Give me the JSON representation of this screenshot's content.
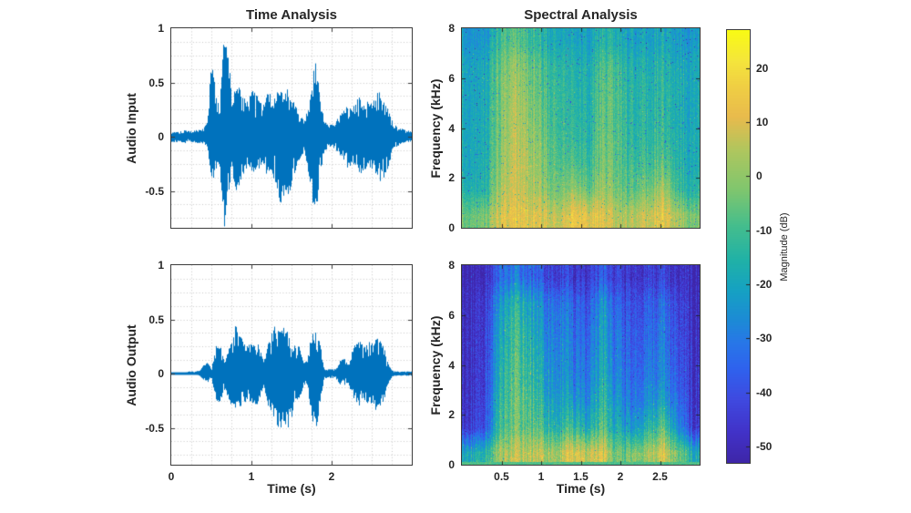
{
  "figure": {
    "background": "#ffffff",
    "text_color": "#262626",
    "axis_color": "#3c3c3c",
    "grid_color": "#c9c9c9"
  },
  "chart_data": [
    {
      "id": "audio-input-waveform",
      "type": "line",
      "title": "Time Analysis",
      "ylabel": "Audio Input",
      "xlabel": "",
      "xlim": [
        0,
        3
      ],
      "ylim": [
        -0.84,
        1
      ],
      "yticks": [
        {
          "v": 1,
          "label": "1"
        },
        {
          "v": 0.5,
          "label": "0.5"
        },
        {
          "v": 0,
          "label": "0"
        },
        {
          "v": -0.5,
          "label": "-0.5"
        }
      ],
      "xticks": [
        {
          "v": 0,
          "label": "0"
        },
        {
          "v": 1,
          "label": "1"
        },
        {
          "v": 2,
          "label": "2"
        }
      ],
      "show_xtick_labels": false,
      "grid": {
        "style": "dotted",
        "minor_x_step_s": 0.25,
        "minor_y_step": 0.125
      },
      "line_color": "#0072bd",
      "sample_step_s": 0.05,
      "envelope_pos": [
        0.04,
        0.05,
        0.05,
        0.06,
        0.06,
        0.05,
        0.06,
        0.07,
        0.08,
        0.15,
        0.8,
        0.4,
        0.3,
        1.0,
        0.9,
        0.35,
        0.45,
        0.5,
        0.4,
        0.35,
        0.45,
        0.4,
        0.35,
        0.3,
        0.45,
        0.35,
        0.4,
        0.45,
        0.4,
        0.45,
        0.35,
        0.3,
        0.2,
        0.15,
        0.25,
        0.5,
        0.75,
        0.45,
        0.15,
        0.12,
        0.12,
        0.15,
        0.2,
        0.25,
        0.3,
        0.25,
        0.35,
        0.4,
        0.3,
        0.35,
        0.3,
        0.4,
        0.45,
        0.35,
        0.25,
        0.15,
        0.1,
        0.08,
        0.07,
        0.06
      ],
      "envelope_neg": [
        0.05,
        0.05,
        0.05,
        0.06,
        0.06,
        0.05,
        0.06,
        0.06,
        0.07,
        0.1,
        0.45,
        0.3,
        0.25,
        0.95,
        0.6,
        0.3,
        0.5,
        0.45,
        0.35,
        0.3,
        0.35,
        0.3,
        0.3,
        0.25,
        0.4,
        0.35,
        0.5,
        0.65,
        0.6,
        0.65,
        0.45,
        0.3,
        0.2,
        0.15,
        0.3,
        0.6,
        0.78,
        0.4,
        0.15,
        0.1,
        0.1,
        0.12,
        0.2,
        0.25,
        0.3,
        0.25,
        0.3,
        0.35,
        0.3,
        0.3,
        0.3,
        0.35,
        0.45,
        0.4,
        0.3,
        0.15,
        0.1,
        0.07,
        0.06,
        0.05
      ]
    },
    {
      "id": "audio-output-waveform",
      "type": "line",
      "title": "",
      "ylabel": "Audio Output",
      "xlabel": "Time (s)",
      "xlim": [
        0,
        3
      ],
      "ylim": [
        -0.84,
        1
      ],
      "yticks": [
        {
          "v": 1,
          "label": "1"
        },
        {
          "v": 0.5,
          "label": "0.5"
        },
        {
          "v": 0,
          "label": "0"
        },
        {
          "v": -0.5,
          "label": "-0.5"
        }
      ],
      "xticks": [
        {
          "v": 0,
          "label": "0"
        },
        {
          "v": 1,
          "label": "1"
        },
        {
          "v": 2,
          "label": "2"
        }
      ],
      "show_xtick_labels": true,
      "grid": {
        "style": "dotted",
        "minor_x_step_s": 0.25,
        "minor_y_step": 0.125
      },
      "line_color": "#0072bd",
      "sample_step_s": 0.05,
      "envelope_pos": [
        0.01,
        0.01,
        0.01,
        0.01,
        0.02,
        0.02,
        0.02,
        0.03,
        0.08,
        0.1,
        0.05,
        0.28,
        0.3,
        0.15,
        0.2,
        0.3,
        0.45,
        0.35,
        0.3,
        0.25,
        0.3,
        0.32,
        0.25,
        0.1,
        0.3,
        0.4,
        0.45,
        0.4,
        0.45,
        0.4,
        0.3,
        0.25,
        0.25,
        0.1,
        0.15,
        0.42,
        0.42,
        0.3,
        0.05,
        0.04,
        0.04,
        0.05,
        0.12,
        0.15,
        0.08,
        0.2,
        0.3,
        0.3,
        0.25,
        0.3,
        0.28,
        0.35,
        0.32,
        0.25,
        0.1,
        0.03,
        0.02,
        0.02,
        0.02,
        0.02
      ],
      "envelope_neg": [
        0.01,
        0.01,
        0.01,
        0.01,
        0.01,
        0.01,
        0.01,
        0.02,
        0.06,
        0.08,
        0.05,
        0.25,
        0.3,
        0.15,
        0.25,
        0.3,
        0.32,
        0.3,
        0.3,
        0.25,
        0.28,
        0.3,
        0.25,
        0.1,
        0.3,
        0.35,
        0.45,
        0.55,
        0.5,
        0.55,
        0.4,
        0.25,
        0.25,
        0.1,
        0.15,
        0.45,
        0.53,
        0.3,
        0.05,
        0.04,
        0.04,
        0.05,
        0.1,
        0.12,
        0.08,
        0.2,
        0.3,
        0.3,
        0.25,
        0.28,
        0.28,
        0.35,
        0.3,
        0.25,
        0.1,
        0.03,
        0.02,
        0.02,
        0.02,
        0.02
      ]
    },
    {
      "id": "input-spectrogram",
      "type": "heatmap",
      "title": "Spectral Analysis",
      "ylabel": "Frequency (kHz)",
      "xlabel": "",
      "xlim": [
        0,
        3
      ],
      "ylim": [
        0,
        8
      ],
      "yticks": [
        {
          "v": 8,
          "label": "8"
        },
        {
          "v": 6,
          "label": "6"
        },
        {
          "v": 4,
          "label": "4"
        },
        {
          "v": 2,
          "label": "2"
        },
        {
          "v": 0,
          "label": "0"
        }
      ],
      "xticks": [
        {
          "v": 0.5,
          "label": "0.5"
        },
        {
          "v": 1,
          "label": "1"
        },
        {
          "v": 1.5,
          "label": "1.5"
        },
        {
          "v": 2,
          "label": "2"
        },
        {
          "v": 2.5,
          "label": "2.5"
        }
      ],
      "show_xtick_labels": false,
      "time_bin_centers_s": [
        0.09,
        0.28,
        0.47,
        0.66,
        0.84,
        1.03,
        1.22,
        1.41,
        1.59,
        1.78,
        1.97,
        2.16,
        2.34,
        2.53,
        2.72,
        2.91
      ],
      "freq_row_centers_khz": [
        7.5,
        6.5,
        5.5,
        4.5,
        3.5,
        2.5,
        1.5,
        0.5
      ],
      "values_db": [
        [
          -24,
          -24,
          -12,
          -8,
          -11,
          -16,
          -18,
          -21,
          -21,
          -15,
          -19,
          -21,
          -21,
          -18,
          -21,
          -24
        ],
        [
          -20,
          -19,
          -6,
          0,
          -4,
          -11,
          -13,
          -17,
          -17,
          -8,
          -13,
          -17,
          -17,
          -14,
          -17,
          -20
        ],
        [
          -20,
          -19,
          -5,
          2,
          -2,
          -9,
          -11,
          -16,
          -16,
          -6,
          -11,
          -15,
          -16,
          -13,
          -16,
          -20
        ],
        [
          -20,
          -18,
          -4,
          4,
          0,
          -7,
          -11,
          -15,
          -15,
          -5,
          -11,
          -15,
          -15,
          -12,
          -16,
          -20
        ],
        [
          -19,
          -18,
          -3,
          5,
          2,
          -5,
          -9,
          -13,
          -14,
          -4,
          -10,
          -14,
          -14,
          -10,
          -15,
          -19
        ],
        [
          -19,
          -17,
          -1,
          6,
          4,
          -3,
          -7,
          -9,
          -11,
          -2,
          -9,
          -11,
          -11,
          -6,
          -13,
          -19
        ],
        [
          -16,
          -15,
          2,
          7,
          5,
          0,
          -3,
          0,
          -5,
          2,
          -6,
          -7,
          -4,
          4,
          -9,
          -16
        ],
        [
          -5,
          -3,
          9,
          11,
          11,
          9,
          7,
          13,
          11,
          11,
          2,
          5,
          7,
          13,
          5,
          -4
        ]
      ],
      "noise_db": 9,
      "col_var_db": 5,
      "speckle_dark_p": 0.012,
      "speckle_bright_p": 0.004,
      "bottom_band_db": null
    },
    {
      "id": "output-spectrogram",
      "type": "heatmap",
      "title": "",
      "ylabel": "Frequency (kHz)",
      "xlabel": "Time (s)",
      "xlim": [
        0,
        3
      ],
      "ylim": [
        0,
        8
      ],
      "yticks": [
        {
          "v": 8,
          "label": "8"
        },
        {
          "v": 6,
          "label": "6"
        },
        {
          "v": 4,
          "label": "4"
        },
        {
          "v": 2,
          "label": "2"
        },
        {
          "v": 0,
          "label": "0"
        }
      ],
      "xticks": [
        {
          "v": 0.5,
          "label": "0.5"
        },
        {
          "v": 1,
          "label": "1"
        },
        {
          "v": 1.5,
          "label": "1.5"
        },
        {
          "v": 2,
          "label": "2"
        },
        {
          "v": 2.5,
          "label": "2.5"
        }
      ],
      "show_xtick_labels": true,
      "time_bin_centers_s": [
        0.09,
        0.28,
        0.47,
        0.66,
        0.84,
        1.03,
        1.22,
        1.41,
        1.59,
        1.78,
        1.97,
        2.16,
        2.34,
        2.53,
        2.72,
        2.91
      ],
      "freq_row_centers_khz": [
        7.5,
        6.5,
        5.5,
        4.5,
        3.5,
        2.5,
        1.5,
        0.5
      ],
      "values_db": [
        [
          -51,
          -51,
          -36,
          -30,
          -33,
          -40,
          -43,
          -46,
          -46,
          -38,
          -46,
          -49,
          -46,
          -42,
          -49,
          -51
        ],
        [
          -49,
          -47,
          -26,
          -15,
          -19,
          -29,
          -31,
          -36,
          -39,
          -25,
          -39,
          -43,
          -39,
          -33,
          -43,
          -49
        ],
        [
          -49,
          -46,
          -23,
          -11,
          -16,
          -26,
          -29,
          -33,
          -36,
          -22,
          -36,
          -41,
          -36,
          -30,
          -41,
          -49
        ],
        [
          -48,
          -46,
          -21,
          -9,
          -13,
          -23,
          -27,
          -31,
          -34,
          -20,
          -34,
          -39,
          -34,
          -28,
          -39,
          -48
        ],
        [
          -48,
          -45,
          -19,
          -7,
          -11,
          -21,
          -25,
          -29,
          -31,
          -18,
          -31,
          -37,
          -31,
          -26,
          -37,
          -48
        ],
        [
          -47,
          -43,
          -16,
          -5,
          -7,
          -17,
          -21,
          -23,
          -27,
          -14,
          -27,
          -33,
          -27,
          -19,
          -33,
          -47
        ],
        [
          -45,
          -41,
          -13,
          -5,
          -5,
          -11,
          -15,
          -11,
          -19,
          -8,
          -21,
          -26,
          -17,
          -6,
          -26,
          -45
        ],
        [
          -18,
          -16,
          0,
          6,
          7,
          5,
          3,
          11,
          6,
          9,
          -8,
          -4,
          0,
          11,
          -3,
          -18
        ]
      ],
      "noise_db": 11,
      "col_var_db": 7,
      "speckle_dark_p": 0.002,
      "speckle_bright_p": 0.012,
      "bottom_band_db": -8
    }
  ],
  "colorbar": {
    "label": "Magnitude (dB)",
    "range_db": [
      -53,
      27
    ],
    "ticks": [
      {
        "v": 20,
        "label": "20"
      },
      {
        "v": 10,
        "label": "10"
      },
      {
        "v": 0,
        "label": "0"
      },
      {
        "v": -10,
        "label": "-10"
      },
      {
        "v": -20,
        "label": "-20"
      },
      {
        "v": -30,
        "label": "-30"
      },
      {
        "v": -40,
        "label": "-40"
      },
      {
        "v": -50,
        "label": "-50"
      }
    ],
    "colormap": "parula",
    "stops": [
      [
        0.0,
        "#3e26a8"
      ],
      [
        0.07,
        "#4232c8"
      ],
      [
        0.15,
        "#3f4be1"
      ],
      [
        0.22,
        "#2f63ee"
      ],
      [
        0.28,
        "#2878e8"
      ],
      [
        0.33,
        "#1d8bd6"
      ],
      [
        0.4,
        "#16a2c3"
      ],
      [
        0.47,
        "#21b2a7"
      ],
      [
        0.55,
        "#46be8d"
      ],
      [
        0.63,
        "#7fc66f"
      ],
      [
        0.72,
        "#aec75f"
      ],
      [
        0.8,
        "#e9bb4d"
      ],
      [
        0.87,
        "#f0cf44"
      ],
      [
        0.93,
        "#f5e63c"
      ],
      [
        1.0,
        "#f9fb15"
      ]
    ]
  }
}
